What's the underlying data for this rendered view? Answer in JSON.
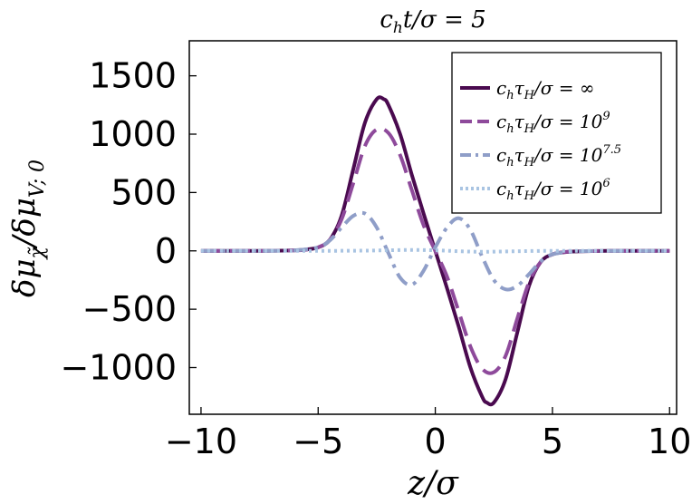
{
  "chart_data": {
    "type": "line",
    "title": "c_h t/σ = 5",
    "xlabel": "z/σ",
    "ylabel": "δμ_χ̃ / δμ_V;0",
    "xlim": [
      -10.5,
      10.3
    ],
    "ylim": [
      -1400,
      1800
    ],
    "xticks": [
      -10,
      -5,
      0,
      5,
      10
    ],
    "xtick_labels": [
      "−10",
      "−5",
      "0",
      "5",
      "10"
    ],
    "yticks": [
      -1000,
      -500,
      0,
      500,
      1000,
      1500
    ],
    "ytick_labels": [
      "−1000",
      "−500",
      "0",
      "500",
      "1000",
      "1500"
    ],
    "grid": false,
    "legend_position": "top-right",
    "series": [
      {
        "name": "c_h τ_H/σ = ∞",
        "color": "#4a0a4f",
        "dash": "solid",
        "x": [
          -10,
          -8,
          -7,
          -6,
          -5.5,
          -5,
          -4.5,
          -4,
          -3.5,
          -3,
          -2.5,
          -2.2,
          -2,
          -1.5,
          -1,
          -0.5,
          0,
          0.5,
          1,
          1.5,
          2,
          2.2,
          2.5,
          3,
          3.5,
          4,
          4.5,
          5,
          5.5,
          6,
          7,
          8,
          10
        ],
        "y": [
          0,
          0,
          1,
          5,
          12,
          30,
          95,
          300,
          700,
          1100,
          1300,
          1300,
          1250,
          1000,
          650,
          320,
          0,
          -320,
          -650,
          -1000,
          -1250,
          -1300,
          -1300,
          -1100,
          -700,
          -300,
          -95,
          -30,
          -12,
          -5,
          -1,
          0,
          0
        ]
      },
      {
        "name": "c_h τ_H/σ = 10^9",
        "color": "#8e4a9b",
        "dash": "long-dash",
        "x": [
          -10,
          -8,
          -7,
          -6,
          -5.5,
          -5,
          -4.5,
          -4,
          -3.5,
          -3,
          -2.5,
          -2,
          -1.5,
          -1,
          -0.5,
          0,
          0.5,
          1,
          1.5,
          2,
          2.5,
          3,
          3.5,
          4,
          4.5,
          5,
          5.5,
          6,
          7,
          8,
          10
        ],
        "y": [
          0,
          0,
          1,
          4,
          10,
          30,
          95,
          270,
          580,
          900,
          1040,
          1010,
          820,
          520,
          220,
          0,
          -220,
          -520,
          -820,
          -1010,
          -1040,
          -900,
          -580,
          -270,
          -95,
          -30,
          -10,
          -4,
          -1,
          0,
          0
        ]
      },
      {
        "name": "c_h τ_H/σ = 10^7.5",
        "color": "#8f9ec8",
        "dash": "dash-dot",
        "x": [
          -10,
          -8,
          -7,
          -6,
          -5,
          -4.5,
          -4,
          -3.5,
          -3,
          -2.5,
          -2,
          -1.5,
          -1,
          -0.5,
          0,
          0.5,
          1,
          1.5,
          2,
          2.5,
          3,
          3.5,
          4,
          4.5,
          5,
          6,
          7,
          8,
          10
        ],
        "y": [
          0,
          0,
          1,
          5,
          30,
          90,
          200,
          300,
          320,
          200,
          -20,
          -230,
          -290,
          -170,
          30,
          200,
          280,
          180,
          -50,
          -250,
          -330,
          -300,
          -200,
          -90,
          -30,
          -5,
          -1,
          0,
          0
        ]
      },
      {
        "name": "c_h τ_H/σ = 10^6",
        "color": "#a9c4e2",
        "dash": "dotted",
        "x": [
          -10,
          -5,
          -3,
          -2,
          -1,
          0,
          1,
          2,
          3,
          5,
          10
        ],
        "y": [
          0,
          0,
          2,
          5,
          8,
          5,
          -3,
          -8,
          -5,
          0,
          0
        ]
      }
    ]
  },
  "legend": {
    "entries": [
      {
        "prefix": "c",
        "sub1": "h",
        "mid": "τ",
        "sub2": "H",
        "suffix": "/σ = ∞",
        "sup": ""
      },
      {
        "prefix": "c",
        "sub1": "h",
        "mid": "τ",
        "sub2": "H",
        "suffix": "/σ = 10",
        "sup": "9"
      },
      {
        "prefix": "c",
        "sub1": "h",
        "mid": "τ",
        "sub2": "H",
        "suffix": "/σ = 10",
        "sup": "7.5"
      },
      {
        "prefix": "c",
        "sub1": "h",
        "mid": "τ",
        "sub2": "H",
        "suffix": "/σ = 10",
        "sup": "6"
      }
    ]
  },
  "labels": {
    "title_c": "c",
    "title_h": "h",
    "title_rest": "t/σ = 5",
    "xlabel": "z/σ",
    "ylabel_a": "δμ",
    "ylabel_a_sub": "χ̃",
    "ylabel_b": "/δμ",
    "ylabel_b_sub": "V; 0"
  }
}
